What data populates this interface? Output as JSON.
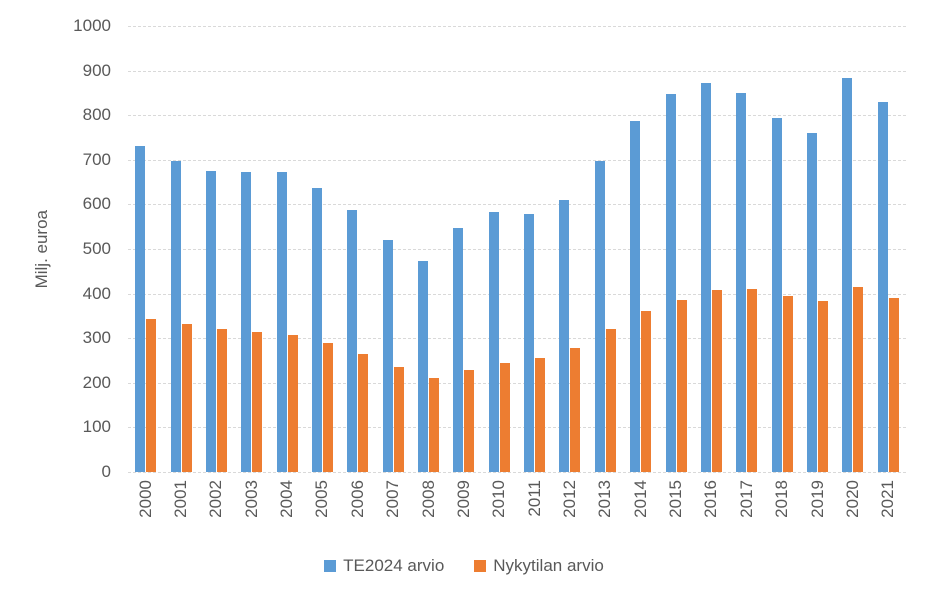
{
  "chart_data": {
    "type": "bar",
    "title": "",
    "xlabel": "",
    "ylabel": "Milj. euroa",
    "ylim": [
      0,
      1000
    ],
    "ytick_step": 100,
    "yticks": [
      0,
      100,
      200,
      300,
      400,
      500,
      600,
      700,
      800,
      900,
      1000
    ],
    "grid": true,
    "legend_position": "bottom",
    "categories": [
      "2000",
      "2001",
      "2002",
      "2003",
      "2004",
      "2005",
      "2006",
      "2007",
      "2008",
      "2009",
      "2010",
      "2011",
      "2012",
      "2013",
      "2014",
      "2015",
      "2016",
      "2017",
      "2018",
      "2019",
      "2020",
      "2021"
    ],
    "series": [
      {
        "name": "TE2024 arvio",
        "color": "#5B9BD5",
        "values": [
          730,
          697,
          674,
          672,
          672,
          636,
          588,
          520,
          473,
          546,
          583,
          579,
          610,
          698,
          786,
          847,
          872,
          850,
          793,
          761,
          883,
          830
        ]
      },
      {
        "name": "Nykytilan arvio",
        "color": "#ED7D31",
        "values": [
          342,
          331,
          320,
          313,
          308,
          290,
          264,
          235,
          211,
          229,
          245,
          256,
          279,
          320,
          360,
          386,
          407,
          411,
          395,
          383,
          415,
          391
        ]
      }
    ],
    "colors": {
      "gridline": "#d9d9d9",
      "axis_text": "#595959",
      "background": "#ffffff"
    }
  }
}
